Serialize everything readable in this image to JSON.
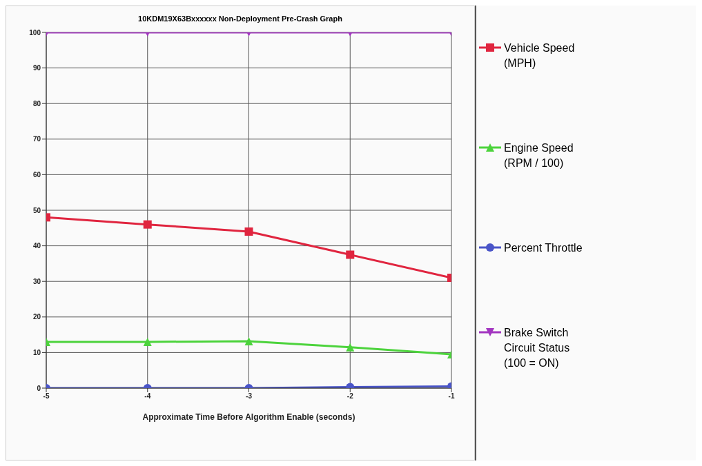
{
  "chart_data": {
    "type": "line",
    "title": "10KDM19X63Bxxxxxx Non-Deployment Pre-Crash Graph",
    "xlabel": "Approximate Time Before Algorithm Enable (seconds)",
    "x": [
      -5,
      -4,
      -3,
      -2,
      -1
    ],
    "xlim": [
      -5,
      -1
    ],
    "xticks": [
      -5,
      -4,
      -3,
      -2,
      -1
    ],
    "ylim": [
      0,
      100
    ],
    "yticks": [
      0,
      10,
      20,
      30,
      40,
      50,
      60,
      70,
      80,
      90,
      100
    ],
    "grid": true,
    "legend": "right",
    "series": [
      {
        "name": "Vehicle Speed (MPH)",
        "color": "#e0253f",
        "marker": "square",
        "values": [
          48,
          46,
          44,
          37.5,
          31
        ]
      },
      {
        "name": "Engine Speed (RPM / 100)",
        "color": "#4cd33c",
        "marker": "triangle",
        "values": [
          13,
          13,
          13.2,
          11.5,
          9.5
        ]
      },
      {
        "name": "Percent Throttle",
        "color": "#4a55c8",
        "marker": "circle",
        "values": [
          0,
          0,
          0,
          0.3,
          0.5
        ]
      },
      {
        "name": "Brake Switch Circuit Status (100 = ON)",
        "color": "#a235c0",
        "marker": "triangle-down",
        "values": [
          100,
          100,
          100,
          100,
          100
        ]
      }
    ]
  }
}
